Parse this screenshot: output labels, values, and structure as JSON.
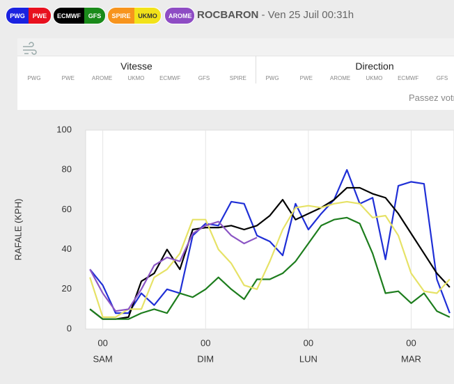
{
  "header": {
    "pills": [
      [
        {
          "name": "PWG",
          "color": "#1a22e0"
        },
        {
          "name": "PWE",
          "color": "#e8101e"
        }
      ],
      [
        {
          "name": "ECMWF",
          "color": "#000000"
        },
        {
          "name": "GFS",
          "color": "#1a8a1a"
        }
      ],
      [
        {
          "name": "SPIRE",
          "color": "#f7941d"
        },
        {
          "name": "UKMO",
          "color": "#f2e21a"
        }
      ],
      [
        {
          "name": "AROME",
          "color": "#8e4cc4"
        }
      ]
    ],
    "location": "ROCBARON",
    "date": "- Ven 25 Juil 00:31h"
  },
  "table": {
    "groups": [
      {
        "title": "Vitesse",
        "columns": [
          "PWG",
          "PWE",
          "AROME",
          "UKMO",
          "ECMWF",
          "GFS",
          "SPIRE"
        ]
      },
      {
        "title": "Direction",
        "columns": [
          "PWG",
          "PWE",
          "AROME",
          "UKMO",
          "ECMWF",
          "GFS"
        ]
      }
    ],
    "hint": "Passez votr"
  },
  "chart_data": {
    "type": "line",
    "y_label": "RAFALE (KPH)",
    "x": [
      -3,
      0,
      3,
      6,
      9,
      12,
      15,
      18,
      21,
      24,
      27,
      30,
      33,
      36,
      39,
      42,
      45,
      48,
      51,
      54,
      57,
      60,
      63,
      66,
      69,
      72,
      75,
      78,
      81
    ],
    "xlim": [
      -4,
      82
    ],
    "xticks": [
      {
        "value": 0,
        "label": "00"
      },
      {
        "value": 24,
        "label": "00"
      },
      {
        "value": 48,
        "label": "00"
      },
      {
        "value": 72,
        "label": "00"
      }
    ],
    "x_groups": [
      "SAM",
      "DIM",
      "LUN",
      "MAR"
    ],
    "ylim": [
      0,
      100
    ],
    "yticks": [
      0,
      20,
      40,
      60,
      80,
      100
    ],
    "grid": "x",
    "series": [
      {
        "name": "PWG",
        "color": "#1f2fd6",
        "values": [
          30,
          22,
          8,
          8,
          18,
          12,
          20,
          18,
          47,
          53,
          52,
          64,
          63,
          47,
          44,
          37,
          63,
          50,
          58,
          65,
          80,
          63,
          66,
          35,
          72,
          74,
          73,
          25,
          8
        ]
      },
      {
        "name": "ECMWF",
        "color": "#000000",
        "values": [
          10,
          5,
          5,
          6,
          24,
          28,
          40,
          30,
          50,
          51,
          51,
          52,
          50,
          52,
          57,
          65,
          55,
          58,
          61,
          65,
          71,
          71,
          68,
          66,
          58,
          48,
          38,
          28,
          21
        ]
      },
      {
        "name": "GFS",
        "color": "#1d7d1d",
        "values": [
          10,
          5,
          5,
          5,
          8,
          10,
          8,
          18,
          16,
          20,
          26,
          20,
          15,
          25,
          25,
          28,
          34,
          43,
          52,
          55,
          56,
          53,
          38,
          18,
          19,
          13,
          18,
          9,
          6
        ]
      },
      {
        "name": "UKMO",
        "color": "#e6e266",
        "values": [
          26,
          6,
          6,
          10,
          10,
          26,
          30,
          38,
          55,
          55,
          40,
          33,
          22,
          20,
          34,
          50,
          61,
          62,
          61,
          63,
          64,
          63,
          56,
          57,
          47,
          28,
          19,
          18,
          25
        ]
      },
      {
        "name": "AROME",
        "color": "#8b55c4",
        "values": [
          30,
          18,
          9,
          10,
          20,
          32,
          36,
          34,
          48,
          52,
          54,
          47,
          43,
          46,
          null,
          null,
          null,
          null,
          null,
          null,
          null,
          null,
          null,
          null,
          null,
          null,
          null,
          null,
          null
        ]
      }
    ]
  }
}
